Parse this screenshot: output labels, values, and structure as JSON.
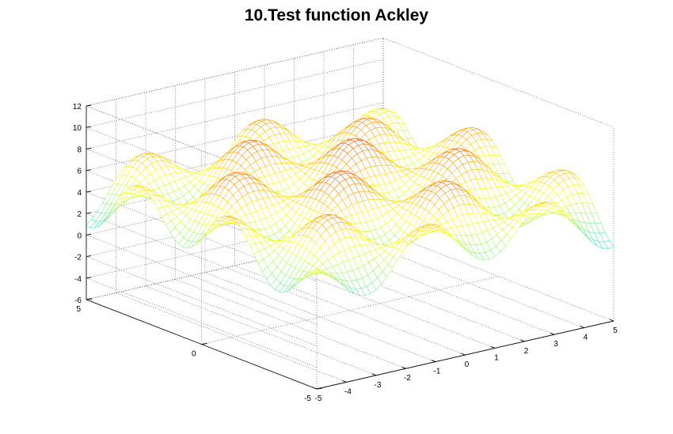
{
  "chart_data": {
    "type": "surface-mesh",
    "title": "10.Test function Ackley",
    "xlabel": "",
    "ylabel": "",
    "zlabel": "",
    "x_range": [
      -5,
      5
    ],
    "y_range": [
      -5,
      5
    ],
    "z_range": [
      -6,
      12
    ],
    "x_ticks": [
      -5,
      -4,
      -3,
      -2,
      -1,
      0,
      1,
      2,
      3,
      4,
      5
    ],
    "y_ticks": [
      -5,
      0,
      5
    ],
    "z_ticks": [
      -6,
      -4,
      -2,
      0,
      2,
      4,
      6,
      8,
      10,
      12
    ],
    "grid": true,
    "colormap": [
      "#0000c8",
      "#00e5ff",
      "#ffff00",
      "#ff0000"
    ],
    "surface": {
      "approx_form": "z = 3 + 2.5*sin(pi*x/2+0.4)*sin(pi*y/2+0.4) + 3.4*(1 - (x^2+y^2)/50)",
      "z_min_observed": -5,
      "z_max_observed": 10.5
    }
  }
}
